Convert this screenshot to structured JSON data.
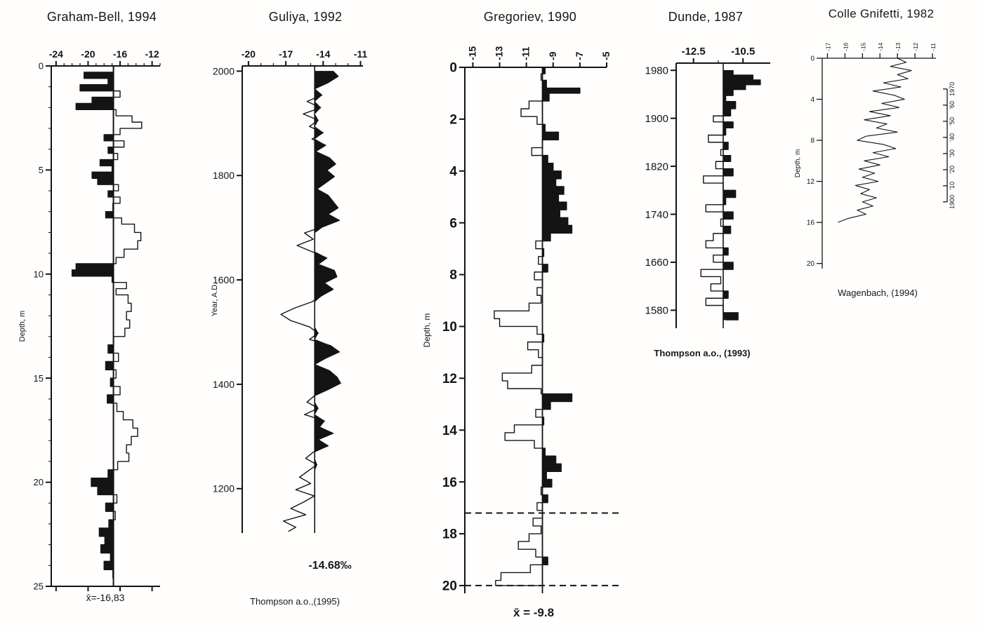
{
  "figure": {
    "background": "#ffffff",
    "ink": "#141414"
  },
  "chart_data": [
    {
      "id": "graham_bell",
      "type": "area",
      "title": "Graham-Bell, 1994",
      "ylabel": "Depth, m",
      "x_ticks": [
        -24,
        -20,
        -16,
        -12
      ],
      "x_range": [
        -24.6,
        -11.0
      ],
      "y_ticks": [
        0,
        5,
        10,
        15,
        20,
        25
      ],
      "y_range": [
        0,
        25
      ],
      "mean": -16.83,
      "mean_label": "x̄=-16,83",
      "fill_side": "left",
      "interpolation": "step",
      "points": [
        [
          0,
          -16.8
        ],
        [
          0.3,
          -20.5
        ],
        [
          0.6,
          -17.5
        ],
        [
          0.9,
          -21
        ],
        [
          1.2,
          -16
        ],
        [
          1.5,
          -19.5
        ],
        [
          1.8,
          -21.5
        ],
        [
          2.1,
          -16.5
        ],
        [
          2.4,
          -14.5
        ],
        [
          2.7,
          -13.3
        ],
        [
          3,
          -16
        ],
        [
          3.3,
          -18
        ],
        [
          3.6,
          -15.5
        ],
        [
          3.9,
          -17.5
        ],
        [
          4.2,
          -16.3
        ],
        [
          4.5,
          -18.5
        ],
        [
          4.8,
          -17
        ],
        [
          5.1,
          -19.5
        ],
        [
          5.4,
          -18.8
        ],
        [
          5.7,
          -16.2
        ],
        [
          6,
          -17.5
        ],
        [
          6.3,
          -16
        ],
        [
          6.6,
          -16.9
        ],
        [
          7,
          -17.8
        ],
        [
          7.3,
          -15.8
        ],
        [
          7.6,
          -14.2
        ],
        [
          8,
          -13.4
        ],
        [
          8.4,
          -13.8
        ],
        [
          8.8,
          -15.5
        ],
        [
          9.2,
          -16.5
        ],
        [
          9.5,
          -21.5
        ],
        [
          9.8,
          -22
        ],
        [
          10.1,
          -17
        ],
        [
          10.4,
          -15.2
        ],
        [
          10.7,
          -16.5
        ],
        [
          11,
          -15
        ],
        [
          11.4,
          -14.6
        ],
        [
          11.8,
          -15.2
        ],
        [
          12.2,
          -14.8
        ],
        [
          12.6,
          -15.4
        ],
        [
          13,
          -16.8
        ],
        [
          13.4,
          -17.5
        ],
        [
          13.8,
          -16.2
        ],
        [
          14.2,
          -17.8
        ],
        [
          14.6,
          -16.5
        ],
        [
          15,
          -17.2
        ],
        [
          15.4,
          -16
        ],
        [
          15.8,
          -17.6
        ],
        [
          16.2,
          -16.4
        ],
        [
          16.6,
          -15.6
        ],
        [
          17,
          -14.4
        ],
        [
          17.4,
          -13.8
        ],
        [
          17.8,
          -14.6
        ],
        [
          18.2,
          -15.2
        ],
        [
          18.6,
          -14.9
        ],
        [
          19,
          -16.3
        ],
        [
          19.4,
          -17.5
        ],
        [
          19.8,
          -19.6
        ],
        [
          20.2,
          -18.8
        ],
        [
          20.6,
          -16.4
        ],
        [
          21,
          -17.8
        ],
        [
          21.4,
          -16.6
        ],
        [
          21.8,
          -17.4
        ],
        [
          22.2,
          -18.6
        ],
        [
          22.6,
          -17.9
        ],
        [
          23,
          -18.4
        ],
        [
          23.4,
          -17.2
        ],
        [
          23.8,
          -18
        ],
        [
          24.2,
          -16.9
        ],
        [
          24.6,
          -16.8
        ]
      ]
    },
    {
      "id": "guliya",
      "type": "area",
      "title": "Guliya, 1992",
      "ylabel": "Year, A.D.",
      "x_ticks": [
        -20,
        -17,
        -14,
        -11
      ],
      "x_range": [
        -20.5,
        -10.8
      ],
      "y_ticks": [
        2000,
        1800,
        1600,
        1400,
        1200
      ],
      "y_range": [
        2010,
        1115
      ],
      "mean": -14.68,
      "mean_label": "-14.68‰",
      "caption": "Thompson a.o.,(1995)",
      "fill_side": "right",
      "interpolation": "linear",
      "points": [
        [
          2000,
          -13.2
        ],
        [
          1990,
          -12.8
        ],
        [
          1978,
          -13.6
        ],
        [
          1966,
          -14.7
        ],
        [
          1954,
          -14.1
        ],
        [
          1942,
          -15.3
        ],
        [
          1930,
          -14.2
        ],
        [
          1918,
          -15.6
        ],
        [
          1906,
          -14.4
        ],
        [
          1894,
          -15.1
        ],
        [
          1882,
          -14
        ],
        [
          1870,
          -14.9
        ],
        [
          1858,
          -13.8
        ],
        [
          1846,
          -14.6
        ],
        [
          1834,
          -13.5
        ],
        [
          1822,
          -13
        ],
        [
          1810,
          -13.7
        ],
        [
          1798,
          -13.1
        ],
        [
          1786,
          -13.8
        ],
        [
          1774,
          -14.5
        ],
        [
          1762,
          -13.6
        ],
        [
          1750,
          -13.2
        ],
        [
          1738,
          -12.8
        ],
        [
          1726,
          -13.6
        ],
        [
          1714,
          -12.7
        ],
        [
          1702,
          -14
        ],
        [
          1690,
          -15.5
        ],
        [
          1678,
          -14.8
        ],
        [
          1666,
          -16.1
        ],
        [
          1654,
          -14.9
        ],
        [
          1642,
          -13.7
        ],
        [
          1630,
          -14.4
        ],
        [
          1618,
          -13.1
        ],
        [
          1606,
          -12.9
        ],
        [
          1594,
          -13.9
        ],
        [
          1582,
          -13.2
        ],
        [
          1570,
          -14.1
        ],
        [
          1558,
          -14.9
        ],
        [
          1546,
          -16.3
        ],
        [
          1534,
          -17.4
        ],
        [
          1522,
          -16.6
        ],
        [
          1510,
          -15.1
        ],
        [
          1498,
          -14.4
        ],
        [
          1486,
          -15.1
        ],
        [
          1474,
          -13.4
        ],
        [
          1462,
          -12.7
        ],
        [
          1450,
          -13.8
        ],
        [
          1438,
          -14.7
        ],
        [
          1426,
          -13.5
        ],
        [
          1414,
          -12.9
        ],
        [
          1402,
          -12.6
        ],
        [
          1390,
          -13.6
        ],
        [
          1378,
          -14.7
        ],
        [
          1366,
          -15.3
        ],
        [
          1354,
          -14.4
        ],
        [
          1342,
          -15.5
        ],
        [
          1330,
          -13.9
        ],
        [
          1318,
          -14.3
        ],
        [
          1306,
          -13.2
        ],
        [
          1294,
          -14.4
        ],
        [
          1282,
          -13.6
        ],
        [
          1270,
          -14.8
        ],
        [
          1258,
          -15.4
        ],
        [
          1246,
          -14.5
        ],
        [
          1234,
          -15.2
        ],
        [
          1222,
          -15.9
        ],
        [
          1210,
          -15
        ],
        [
          1198,
          -16.2
        ],
        [
          1186,
          -14.7
        ],
        [
          1174,
          -15.6
        ],
        [
          1162,
          -16.6
        ],
        [
          1150,
          -15.4
        ],
        [
          1138,
          -17.2
        ],
        [
          1126,
          -16.2
        ],
        [
          1118,
          -16.8
        ]
      ]
    },
    {
      "id": "gregoriev",
      "type": "area",
      "title": "Gregoriev, 1990",
      "ylabel": "Depth, m",
      "x_ticks": [
        -15,
        -13,
        -11,
        -9,
        -7,
        -5
      ],
      "x_range": [
        -15.6,
        -5.0
      ],
      "y_ticks": [
        0,
        2,
        4,
        6,
        8,
        10,
        12,
        14,
        16,
        18,
        20
      ],
      "y_range": [
        0,
        20.3
      ],
      "mean": -9.8,
      "mean_label": "x̄ = -9.8",
      "dashed_depths": [
        17.2,
        20.0
      ],
      "fill_side": "right",
      "interpolation": "step",
      "points": [
        [
          0,
          -9.6
        ],
        [
          0.25,
          -9.9
        ],
        [
          0.5,
          -9.5
        ],
        [
          0.8,
          -7
        ],
        [
          1,
          -9.3
        ],
        [
          1.3,
          -10.8
        ],
        [
          1.6,
          -11.4
        ],
        [
          1.9,
          -10.2
        ],
        [
          2.2,
          -9.6
        ],
        [
          2.5,
          -8.6
        ],
        [
          2.8,
          -9.8
        ],
        [
          3.1,
          -10.6
        ],
        [
          3.4,
          -9.4
        ],
        [
          3.7,
          -9
        ],
        [
          4,
          -8.4
        ],
        [
          4.3,
          -8.8
        ],
        [
          4.6,
          -8.2
        ],
        [
          4.9,
          -8.6
        ],
        [
          5.2,
          -8
        ],
        [
          5.5,
          -8.5
        ],
        [
          5.8,
          -7.9
        ],
        [
          6.1,
          -7.6
        ],
        [
          6.4,
          -9.2
        ],
        [
          6.7,
          -10.3
        ],
        [
          7,
          -9.7
        ],
        [
          7.3,
          -10.1
        ],
        [
          7.6,
          -9.4
        ],
        [
          7.9,
          -10.4
        ],
        [
          8.2,
          -9.8
        ],
        [
          8.5,
          -10.2
        ],
        [
          8.8,
          -9.9
        ],
        [
          9.1,
          -10.8
        ],
        [
          9.4,
          -13.4
        ],
        [
          9.7,
          -13
        ],
        [
          10,
          -10.2
        ],
        [
          10.3,
          -9.7
        ],
        [
          10.6,
          -10.9
        ],
        [
          10.9,
          -10.1
        ],
        [
          11.2,
          -9.8
        ],
        [
          11.5,
          -10.6
        ],
        [
          11.8,
          -12.8
        ],
        [
          12.1,
          -12.4
        ],
        [
          12.4,
          -9.9
        ],
        [
          12.6,
          -7.6
        ],
        [
          12.9,
          -9.2
        ],
        [
          13.2,
          -10.3
        ],
        [
          13.5,
          -9.7
        ],
        [
          13.8,
          -11.9
        ],
        [
          14.1,
          -12.6
        ],
        [
          14.4,
          -10.4
        ],
        [
          14.7,
          -9.6
        ],
        [
          15,
          -8.8
        ],
        [
          15.3,
          -8.4
        ],
        [
          15.6,
          -9.5
        ],
        [
          15.9,
          -9.1
        ],
        [
          16.2,
          -9.9
        ],
        [
          16.5,
          -9.4
        ],
        [
          16.8,
          -10.2
        ],
        [
          17.1,
          -9.8
        ],
        [
          17.4,
          -10.5
        ],
        [
          17.7,
          -9.9
        ],
        [
          18,
          -10.8
        ],
        [
          18.3,
          -11.6
        ],
        [
          18.6,
          -10.3
        ],
        [
          18.9,
          -9.4
        ],
        [
          19.2,
          -10.7
        ],
        [
          19.5,
          -12.9
        ],
        [
          19.8,
          -13.3
        ],
        [
          20,
          -10
        ]
      ]
    },
    {
      "id": "dunde",
      "type": "area",
      "title": "Dunde, 1987",
      "ylabel": "",
      "x_ticks": [
        -12.5,
        -10.5
      ],
      "x_range": [
        -13.2,
        -9.4
      ],
      "y_ticks": [
        1980,
        1900,
        1820,
        1740,
        1660,
        1580
      ],
      "y_range": [
        1992,
        1550
      ],
      "mean": -11.3,
      "caption": "Thompson a.o., (1993)",
      "fill_side": "right",
      "interpolation": "step",
      "points": [
        [
          1980,
          -10.9
        ],
        [
          1972,
          -10.1
        ],
        [
          1964,
          -9.8
        ],
        [
          1956,
          -10.4
        ],
        [
          1948,
          -10.9
        ],
        [
          1938,
          -11.2
        ],
        [
          1928,
          -10.8
        ],
        [
          1916,
          -11
        ],
        [
          1904,
          -11.7
        ],
        [
          1894,
          -10.9
        ],
        [
          1884,
          -11.2
        ],
        [
          1872,
          -11.9
        ],
        [
          1860,
          -11.1
        ],
        [
          1848,
          -11.4
        ],
        [
          1838,
          -11
        ],
        [
          1828,
          -11.6
        ],
        [
          1816,
          -10.9
        ],
        [
          1804,
          -12.1
        ],
        [
          1792,
          -11.3
        ],
        [
          1780,
          -10.8
        ],
        [
          1768,
          -11.2
        ],
        [
          1756,
          -12
        ],
        [
          1744,
          -10.9
        ],
        [
          1732,
          -11.4
        ],
        [
          1720,
          -11
        ],
        [
          1708,
          -11.7
        ],
        [
          1696,
          -12
        ],
        [
          1684,
          -11.1
        ],
        [
          1672,
          -11.7
        ],
        [
          1660,
          -10.9
        ],
        [
          1648,
          -12.2
        ],
        [
          1636,
          -11.4
        ],
        [
          1624,
          -11.8
        ],
        [
          1612,
          -11.1
        ],
        [
          1600,
          -12
        ],
        [
          1588,
          -11.3
        ],
        [
          1576,
          -10.7
        ],
        [
          1564,
          -11.2
        ]
      ]
    },
    {
      "id": "colle",
      "type": "line",
      "title": "Colle Gnifetti, 1982",
      "ylabel": "Depth, m",
      "x_ticks": [
        -17,
        -16,
        -15,
        -14,
        -13,
        -12,
        -11
      ],
      "x_range": [
        -17.3,
        -10.8
      ],
      "y_ticks": [
        0,
        4,
        8,
        12,
        16,
        20
      ],
      "y_range": [
        0,
        20.5
      ],
      "caption": "Wagenbach, (1994)",
      "interpolation": "linear",
      "right_axis": {
        "labels": [
          "1970",
          "'60",
          "'50",
          "'40",
          "'30",
          "'20",
          "'10",
          "1900"
        ],
        "depth_range": [
          3,
          14
        ]
      },
      "points": [
        [
          0,
          -13
        ],
        [
          0.4,
          -12.5
        ],
        [
          0.8,
          -13.4
        ],
        [
          1.2,
          -12.2
        ],
        [
          1.6,
          -13
        ],
        [
          2,
          -12.4
        ],
        [
          2.4,
          -13.8
        ],
        [
          2.8,
          -12.8
        ],
        [
          3.2,
          -14.4
        ],
        [
          3.6,
          -13.2
        ],
        [
          4,
          -12.6
        ],
        [
          4.4,
          -13.9
        ],
        [
          4.8,
          -12.9
        ],
        [
          5.2,
          -14.6
        ],
        [
          5.6,
          -13.4
        ],
        [
          6,
          -14.9
        ],
        [
          6.4,
          -13.6
        ],
        [
          6.8,
          -14.2
        ],
        [
          7.2,
          -13
        ],
        [
          7.6,
          -14.8
        ],
        [
          8,
          -15.3
        ],
        [
          8.4,
          -13.8
        ],
        [
          8.8,
          -13.1
        ],
        [
          9.2,
          -14.4
        ],
        [
          9.6,
          -13.5
        ],
        [
          10,
          -14.9
        ],
        [
          10.4,
          -14
        ],
        [
          10.8,
          -15.2
        ],
        [
          11.2,
          -14.3
        ],
        [
          11.6,
          -15
        ],
        [
          12,
          -14.1
        ],
        [
          12.4,
          -15.4
        ],
        [
          12.8,
          -14.6
        ],
        [
          13.2,
          -15.1
        ],
        [
          13.6,
          -14.2
        ],
        [
          14,
          -15
        ],
        [
          14.4,
          -14.4
        ],
        [
          14.8,
          -15.3
        ],
        [
          15.2,
          -14.8
        ],
        [
          15.6,
          -15.8
        ],
        [
          16,
          -16.4
        ]
      ]
    }
  ]
}
